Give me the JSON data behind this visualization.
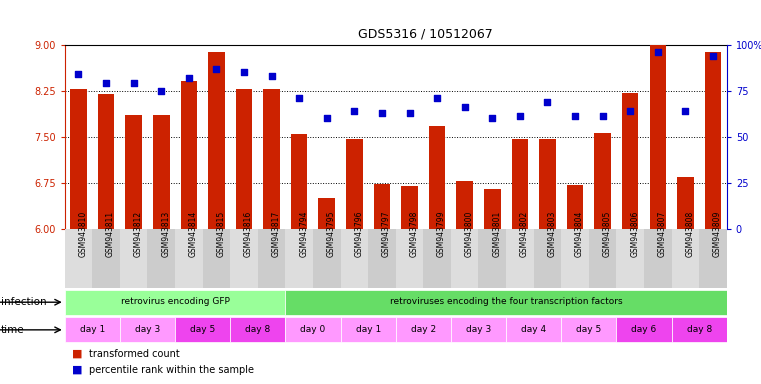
{
  "title": "GDS5316 / 10512067",
  "samples": [
    "GSM943810",
    "GSM943811",
    "GSM943812",
    "GSM943813",
    "GSM943814",
    "GSM943815",
    "GSM943816",
    "GSM943817",
    "GSM943794",
    "GSM943795",
    "GSM943796",
    "GSM943797",
    "GSM943798",
    "GSM943799",
    "GSM943800",
    "GSM943801",
    "GSM943802",
    "GSM943803",
    "GSM943804",
    "GSM943805",
    "GSM943806",
    "GSM943807",
    "GSM943808",
    "GSM943809"
  ],
  "bar_values": [
    8.28,
    8.19,
    7.85,
    7.85,
    8.4,
    8.88,
    8.28,
    8.28,
    7.55,
    6.5,
    7.46,
    6.73,
    6.69,
    7.67,
    6.78,
    6.65,
    7.46,
    7.47,
    6.72,
    7.56,
    8.21,
    9.0,
    6.84,
    8.88
  ],
  "dot_values": [
    84,
    79,
    79,
    75,
    82,
    87,
    85,
    83,
    71,
    60,
    64,
    63,
    63,
    71,
    66,
    60,
    61,
    69,
    61,
    61,
    64,
    96,
    64,
    94
  ],
  "ylim": [
    6,
    9
  ],
  "yticks": [
    6,
    6.75,
    7.5,
    8.25,
    9
  ],
  "y2lim": [
    0,
    100
  ],
  "y2ticks": [
    0,
    25,
    50,
    75,
    100
  ],
  "bar_color": "#CC2200",
  "dot_color": "#0000CC",
  "bg_color": "#FFFFFF",
  "infection_groups": [
    {
      "label": "retrovirus encoding GFP",
      "start": 0,
      "end": 8,
      "color": "#99FF99"
    },
    {
      "label": "retroviruses encoding the four transcription factors",
      "start": 8,
      "end": 24,
      "color": "#66DD66"
    }
  ],
  "time_groups": [
    {
      "label": "day 1",
      "start": 0,
      "end": 2,
      "color": "#FF99FF"
    },
    {
      "label": "day 3",
      "start": 2,
      "end": 4,
      "color": "#FF99FF"
    },
    {
      "label": "day 5",
      "start": 4,
      "end": 6,
      "color": "#EE44EE"
    },
    {
      "label": "day 8",
      "start": 6,
      "end": 8,
      "color": "#EE44EE"
    },
    {
      "label": "day 0",
      "start": 8,
      "end": 10,
      "color": "#FF99FF"
    },
    {
      "label": "day 1",
      "start": 10,
      "end": 12,
      "color": "#FF99FF"
    },
    {
      "label": "day 2",
      "start": 12,
      "end": 14,
      "color": "#FF99FF"
    },
    {
      "label": "day 3",
      "start": 14,
      "end": 16,
      "color": "#FF99FF"
    },
    {
      "label": "day 4",
      "start": 16,
      "end": 18,
      "color": "#FF99FF"
    },
    {
      "label": "day 5",
      "start": 18,
      "end": 20,
      "color": "#FF99FF"
    },
    {
      "label": "day 6",
      "start": 20,
      "end": 22,
      "color": "#EE44EE"
    },
    {
      "label": "day 8",
      "start": 22,
      "end": 24,
      "color": "#EE44EE"
    }
  ],
  "infection_label": "infection",
  "time_label": "time",
  "legend_bar": "transformed count",
  "legend_dot": "percentile rank within the sample",
  "axis_left_color": "#CC2200",
  "axis_right_color": "#0000CC",
  "title_fontsize": 9,
  "tick_fontsize": 7,
  "sample_fontsize": 5.5,
  "row_fontsize": 6.5,
  "label_fontsize": 7.5,
  "legend_fontsize": 7
}
